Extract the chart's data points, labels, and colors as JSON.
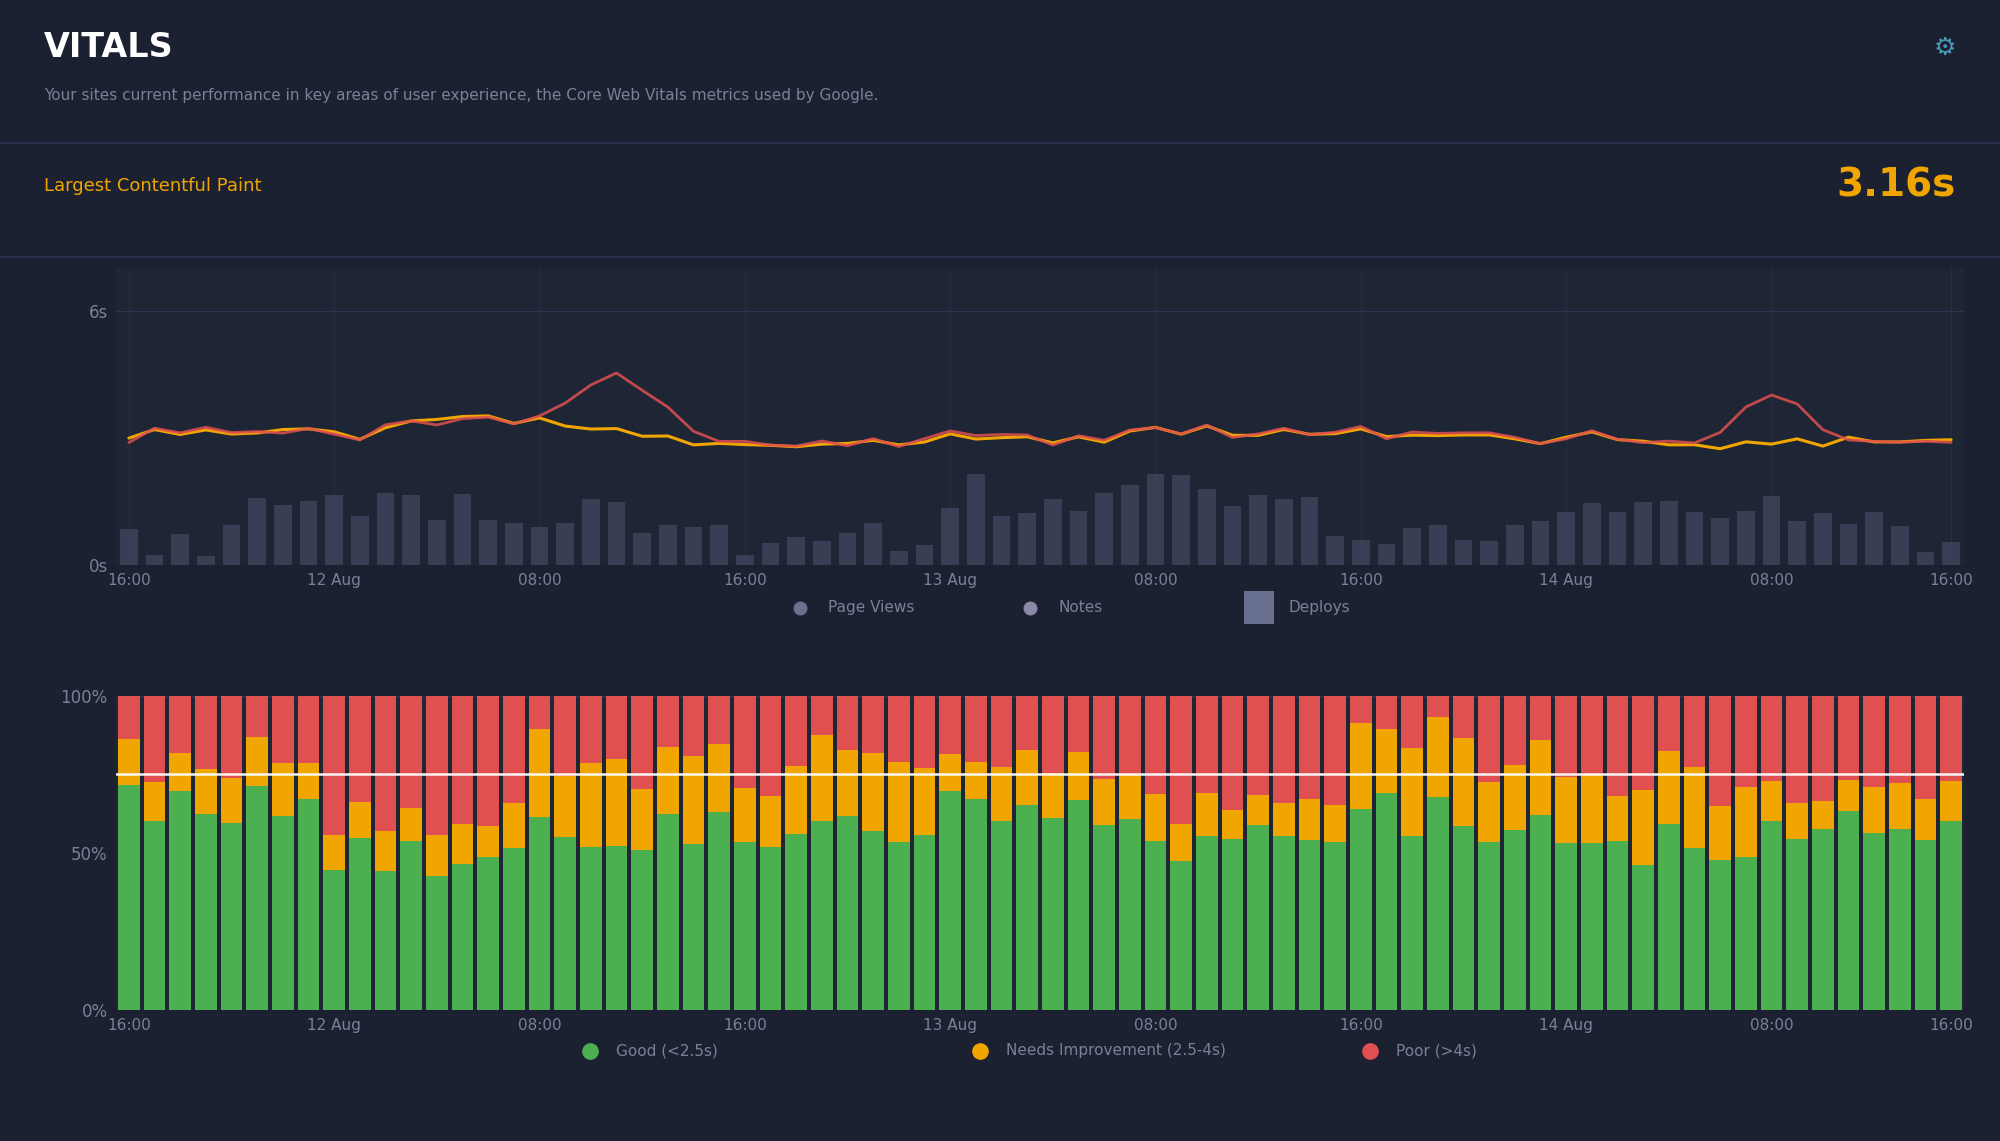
{
  "bg_color": "#1c2132",
  "panel_bg": "#1e2535",
  "chart_bg": "#1e2535",
  "title": "VITALS",
  "subtitle": "Your sites current performance in key areas of user experience, the Core Web Vitals metrics used by Google.",
  "metric_label": "Largest Contentful Paint",
  "metric_value": "3.16s",
  "metric_value_color": "#f0a500",
  "metric_label_color": "#f0a500",
  "title_color": "#ffffff",
  "subtitle_color": "#7a8099",
  "axis_label_color": "#7a8099",
  "tick_color": "#7a8099",
  "line_color_orange": "#f0a500",
  "line_color_red": "#e05050",
  "bar_color_gray": "#424860",
  "separator_color": "#2e3450",
  "white_line_color": "#ffffff",
  "n_points": 72,
  "x_tick_labels": [
    "16:00",
    "12 Aug",
    "08:00",
    "16:00",
    "13 Aug",
    "08:00",
    "16:00",
    "14 Aug",
    "08:00",
    "16:00"
  ],
  "x_tick_positions": [
    0,
    8,
    16,
    24,
    32,
    40,
    48,
    56,
    64,
    71
  ],
  "legend1_items": [
    "Page Views",
    "Notes",
    "Deploys"
  ],
  "legend1_colors": [
    "#6a7090",
    "#8a8aa8",
    "#6a7090"
  ],
  "legend1_markers": [
    "o",
    "o",
    "s"
  ],
  "legend2_items": [
    "Good (<2.5s)",
    "Needs Improvement (2.5-4s)",
    "Poor (>4s)"
  ],
  "legend2_colors": [
    "#4caf50",
    "#f0a500",
    "#e05050"
  ],
  "good_color": "#4caf50",
  "needs_color": "#f0a500",
  "poor_color": "#e05050",
  "icon_color": "#4a9aba",
  "ref_line_y": 0.75
}
